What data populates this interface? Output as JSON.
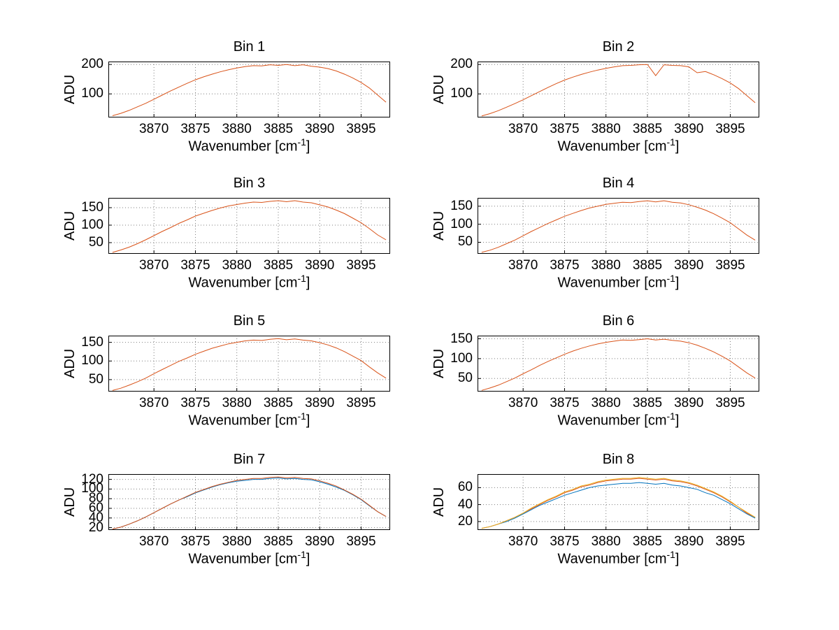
{
  "figure": {
    "background": "#ffffff"
  },
  "chart_common": {
    "xlabel_main": "Wavenumber [cm",
    "xlabel_sup": "-1",
    "xlabel_close": "]",
    "xlabel_full": "Wavenumber [cm-1]",
    "ylabel": "ADU",
    "xlim": [
      3864.5,
      3898.5
    ],
    "xticks": [
      3870,
      3875,
      3880,
      3885,
      3890,
      3895
    ],
    "x": [
      3865,
      3866,
      3867,
      3868,
      3869,
      3870,
      3871,
      3872,
      3873,
      3874,
      3875,
      3876,
      3877,
      3878,
      3879,
      3880,
      3881,
      3882,
      3883,
      3884,
      3885,
      3886,
      3887,
      3888,
      3889,
      3890,
      3891,
      3892,
      3893,
      3894,
      3895,
      3896,
      3897,
      3898
    ]
  },
  "chart_data": [
    {
      "type": "line",
      "title": "Bin 1",
      "grid": true,
      "ylim": [
        20,
        210
      ],
      "yticks": [
        100,
        200
      ],
      "series": [
        {
          "name": "spectrum",
          "color": "#D95319",
          "y": [
            26,
            34,
            44,
            56,
            68,
            82,
            96,
            110,
            123,
            136,
            148,
            158,
            167,
            175,
            182,
            188,
            193,
            196,
            195,
            199,
            197,
            200,
            196,
            199,
            194,
            191,
            186,
            178,
            167,
            154,
            139,
            120,
            96,
            72
          ]
        }
      ]
    },
    {
      "type": "line",
      "title": "Bin 2",
      "grid": true,
      "ylim": [
        20,
        210
      ],
      "yticks": [
        100,
        200
      ],
      "series": [
        {
          "name": "spectrum",
          "color": "#D95319",
          "y": [
            25,
            33,
            43,
            55,
            67,
            80,
            94,
            108,
            122,
            135,
            147,
            157,
            166,
            174,
            181,
            187,
            192,
            196,
            197,
            199,
            200,
            162,
            199,
            197,
            196,
            192,
            172,
            176,
            165,
            152,
            137,
            118,
            94,
            70
          ]
        }
      ]
    },
    {
      "type": "line",
      "title": "Bin 3",
      "grid": true,
      "ylim": [
        18,
        178
      ],
      "yticks": [
        50,
        100,
        150
      ],
      "series": [
        {
          "name": "spectrum",
          "color": "#D95319",
          "y": [
            22,
            29,
            37,
            47,
            58,
            70,
            82,
            93,
            105,
            115,
            126,
            134,
            142,
            149,
            155,
            159,
            163,
            166,
            165,
            168,
            170,
            167,
            170,
            166,
            164,
            158,
            152,
            143,
            133,
            120,
            107,
            90,
            72,
            58
          ]
        }
      ]
    },
    {
      "type": "line",
      "title": "Bin 4",
      "grid": true,
      "ylim": [
        18,
        173
      ],
      "yticks": [
        50,
        100,
        150
      ],
      "series": [
        {
          "name": "spectrum",
          "color": "#D95319",
          "y": [
            22,
            28,
            36,
            46,
            56,
            68,
            80,
            91,
            102,
            112,
            122,
            130,
            138,
            145,
            150,
            155,
            158,
            161,
            160,
            163,
            165,
            162,
            165,
            161,
            159,
            154,
            147,
            139,
            129,
            117,
            104,
            87,
            70,
            56
          ]
        }
      ]
    },
    {
      "type": "line",
      "title": "Bin 5",
      "grid": true,
      "ylim": [
        18,
        168
      ],
      "yticks": [
        50,
        100,
        150
      ],
      "series": [
        {
          "name": "spectrum",
          "color": "#D95319",
          "y": [
            21,
            27,
            35,
            44,
            54,
            66,
            77,
            88,
            99,
            108,
            118,
            126,
            134,
            140,
            146,
            150,
            154,
            156,
            155,
            158,
            160,
            157,
            159,
            156,
            154,
            149,
            143,
            135,
            125,
            113,
            101,
            84,
            68,
            54
          ]
        }
      ]
    },
    {
      "type": "line",
      "title": "Bin 6",
      "grid": true,
      "ylim": [
        17,
        158
      ],
      "yticks": [
        50,
        100,
        150
      ],
      "series": [
        {
          "name": "spectrum",
          "color": "#D95319",
          "y": [
            20,
            26,
            33,
            42,
            51,
            62,
            72,
            83,
            93,
            102,
            111,
            119,
            126,
            132,
            137,
            141,
            144,
            147,
            146,
            148,
            150,
            147,
            149,
            146,
            144,
            140,
            134,
            126,
            117,
            106,
            94,
            79,
            64,
            51
          ]
        }
      ]
    },
    {
      "type": "line",
      "title": "Bin 7",
      "grid": true,
      "ylim": [
        15,
        131
      ],
      "yticks": [
        20,
        40,
        60,
        80,
        100,
        120
      ],
      "series": [
        {
          "name": "spectrum-blue",
          "color": "#0072BD",
          "y": [
            17,
            21,
            27,
            34,
            42,
            51,
            60,
            69,
            77,
            84,
            92,
            98,
            104,
            109,
            113,
            116,
            118,
            120,
            120,
            122,
            123,
            121,
            122,
            120,
            119,
            115,
            110,
            104,
            97,
            88,
            78,
            65,
            53,
            43
          ]
        },
        {
          "name": "spectrum-orange",
          "color": "#D95319",
          "y": [
            17,
            21,
            27,
            34,
            42,
            51,
            60,
            69,
            77,
            85,
            93,
            99,
            105,
            110,
            114,
            118,
            120,
            122,
            122,
            124,
            125,
            123,
            124,
            122,
            121,
            117,
            112,
            106,
            98,
            89,
            79,
            66,
            53,
            43
          ]
        }
      ]
    },
    {
      "type": "line",
      "title": "Bin 8",
      "grid": true,
      "ylim": [
        10,
        76
      ],
      "yticks": [
        20,
        40,
        60
      ],
      "series": [
        {
          "name": "spectrum-blue",
          "color": "#0072BD",
          "y": [
            12,
            14,
            17,
            20,
            24,
            29,
            34,
            39,
            43,
            47,
            51,
            54,
            57,
            60,
            62,
            63,
            64,
            65,
            65,
            66,
            65,
            64,
            65,
            63,
            62,
            60,
            58,
            54,
            51,
            46,
            41,
            35,
            29,
            24
          ]
        },
        {
          "name": "spectrum-orange",
          "color": "#D95319",
          "y": [
            12,
            14,
            17,
            21,
            25,
            30,
            35,
            40,
            45,
            49,
            54,
            57,
            61,
            63,
            66,
            68,
            69,
            70,
            70,
            71,
            70,
            69,
            70,
            68,
            67,
            65,
            62,
            58,
            54,
            49,
            43,
            37,
            30,
            25
          ]
        },
        {
          "name": "spectrum-yellow",
          "color": "#EDB120",
          "y": [
            12,
            14,
            17,
            21,
            25,
            30,
            36,
            41,
            46,
            50,
            55,
            58,
            62,
            64,
            67,
            69,
            70,
            71,
            71,
            72,
            71,
            70,
            71,
            69,
            68,
            66,
            63,
            59,
            55,
            50,
            44,
            37,
            31,
            25
          ]
        }
      ]
    }
  ]
}
